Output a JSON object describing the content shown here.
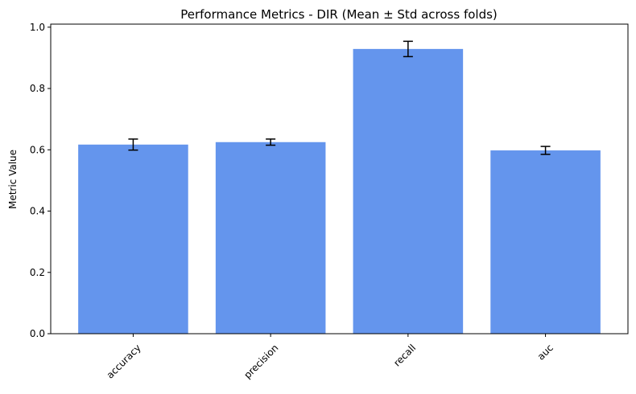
{
  "chart_data": {
    "type": "bar",
    "title": "Performance Metrics - DIR (Mean ± Std across folds)",
    "y_label": "Metric Value",
    "categories": [
      "accuracy",
      "precision",
      "recall",
      "auc"
    ],
    "values": [
      0.617,
      0.625,
      0.929,
      0.598
    ],
    "errors": [
      0.018,
      0.01,
      0.025,
      0.013
    ],
    "color": "#6495ed",
    "ylim": [
      0,
      1.01
    ],
    "yticks": [
      0.0,
      0.2,
      0.4,
      0.6,
      0.8,
      1.0
    ],
    "grid": false
  }
}
